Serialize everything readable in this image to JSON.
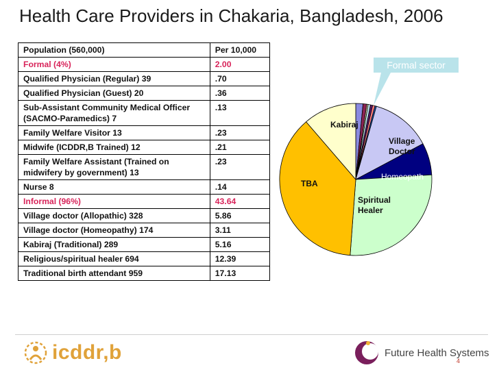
{
  "title": "Health Care Providers in Chakaria, Bangladesh, 2006",
  "table": {
    "header": [
      "Population (560,000)",
      "Per 10,000"
    ],
    "rows": [
      {
        "label": "Formal (4%)",
        "value": "2.00",
        "red": true
      },
      {
        "label": "Qualified Physician (Regular) 39",
        "value": ".70"
      },
      {
        "label": "Qualified Physician (Guest) 20",
        "value": ".36"
      },
      {
        "label": "Sub-Assistant Community Medical Officer (SACMO-Paramedics) 7",
        "value": ".13"
      },
      {
        "label": "Family Welfare Visitor 13",
        "value": ".23"
      },
      {
        "label": "Midwife (ICDDR,B Trained) 12",
        "value": ".21"
      },
      {
        "label": "Family Welfare Assistant (Trained on midwifery by government) 13",
        "value": ".23"
      },
      {
        "label": "Nurse  8",
        "value": ".14"
      },
      {
        "label": "Informal (96%)",
        "value": "43.64",
        "red": true
      },
      {
        "label": "Village doctor (Allopathic) 328",
        "value": "5.86"
      },
      {
        "label": "Village doctor (Homeopathy) 174",
        "value": "3.11"
      },
      {
        "label": "Kabiraj (Traditional) 289",
        "value": "5.16"
      },
      {
        "label": "Religious/spiritual healer 694",
        "value": "12.39"
      },
      {
        "label": "Traditional birth attendant 959",
        "value": "17.13"
      }
    ]
  },
  "chart_data": {
    "type": "pie",
    "title": "",
    "slices": [
      {
        "label": "",
        "value": 0.7,
        "color": "#8a8ae0"
      },
      {
        "label": "",
        "value": 0.36,
        "color": "#8b2252"
      },
      {
        "label": "",
        "value": 0.13,
        "color": "#f4f0c0"
      },
      {
        "label": "",
        "value": 0.23,
        "color": "#b8e0ec"
      },
      {
        "label": "",
        "value": 0.21,
        "color": "#5b1a6e"
      },
      {
        "label": "",
        "value": 0.23,
        "color": "#ff7f7f"
      },
      {
        "label": "",
        "value": 0.14,
        "color": "#1f5fbf"
      },
      {
        "label": "Village Doctor",
        "value": 5.86,
        "color": "#c8c8f4"
      },
      {
        "label": "Homeopath",
        "value": 3.11,
        "color": "#000080"
      },
      {
        "label": "Spiritual Healer",
        "value": 12.39,
        "color": "#ccffcc"
      },
      {
        "label": "TBA",
        "value": 17.13,
        "color": "#ffc000"
      },
      {
        "label": "Kabiraj",
        "value": 5.16,
        "color": "#ffffcc"
      }
    ],
    "callout": "Formal sector"
  },
  "footer": {
    "left_logo": "icddr,b",
    "right_logo": "Future Health Systems",
    "page_number": "4"
  }
}
